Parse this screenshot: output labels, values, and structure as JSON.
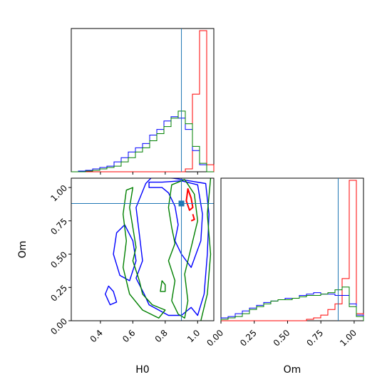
{
  "chart_data": [
    {
      "type": "histogram",
      "panel": "H0 marginal",
      "xlim": [
        0.22,
        1.1
      ],
      "truth": 0.9,
      "bins": [
        0.22,
        0.264,
        0.308,
        0.352,
        0.396,
        0.44,
        0.484,
        0.528,
        0.572,
        0.616,
        0.66,
        0.704,
        0.748,
        0.792,
        0.836,
        0.88,
        0.924,
        0.968,
        1.012,
        1.056,
        1.1
      ],
      "series": [
        {
          "color": "#ff0000",
          "shape": "narrow",
          "mode": 1.0,
          "values": [
            0,
            0,
            0,
            0,
            0,
            0,
            0,
            0,
            0,
            0,
            0,
            0,
            0,
            0,
            0,
            0,
            0.02,
            0.55,
            1.0,
            0.05
          ]
        },
        {
          "color": "#0000ff",
          "shape": "broad",
          "values": [
            0.0,
            0.005,
            0.01,
            0.02,
            0.03,
            0.04,
            0.07,
            0.1,
            0.14,
            0.17,
            0.2,
            0.26,
            0.3,
            0.36,
            0.39,
            0.38,
            0.3,
            0.15,
            0.05,
            0.0
          ]
        },
        {
          "color": "#008000",
          "shape": "broad",
          "values": [
            0.0,
            0.0,
            0.005,
            0.01,
            0.02,
            0.03,
            0.04,
            0.07,
            0.1,
            0.14,
            0.17,
            0.22,
            0.27,
            0.32,
            0.38,
            0.43,
            0.34,
            0.18,
            0.06,
            0.0
          ]
        }
      ]
    },
    {
      "type": "contour",
      "panel": "H0 vs Om joint",
      "xlabel": "H0",
      "ylabel": "Om",
      "xlim": [
        0.22,
        1.1
      ],
      "ylim": [
        0.0,
        1.07
      ],
      "xticks": [
        "0.4",
        "0.6",
        "0.8",
        "1.0"
      ],
      "yticks": [
        "0.00",
        "0.25",
        "0.50",
        "0.75",
        "1.00"
      ],
      "truth": {
        "x": 0.9,
        "y": 0.88
      },
      "contours": [
        {
          "color": "#0000ff",
          "points": [
            [
              0.45,
              0.26
            ],
            [
              0.48,
              0.22
            ],
            [
              0.5,
              0.14
            ],
            [
              0.46,
              0.12
            ],
            [
              0.43,
              0.2
            ]
          ]
        },
        {
          "color": "#0000ff",
          "points": [
            [
              0.55,
              0.72
            ],
            [
              0.6,
              0.6
            ],
            [
              0.62,
              0.45
            ],
            [
              0.58,
              0.3
            ],
            [
              0.52,
              0.34
            ],
            [
              0.48,
              0.5
            ],
            [
              0.5,
              0.66
            ]
          ]
        },
        {
          "color": "#0000ff",
          "points": [
            [
              0.7,
              1.0
            ],
            [
              0.78,
              1.0
            ],
            [
              0.82,
              0.96
            ],
            [
              0.86,
              0.86
            ],
            [
              0.88,
              0.72
            ],
            [
              0.86,
              0.6
            ],
            [
              0.9,
              0.5
            ],
            [
              0.96,
              0.4
            ],
            [
              1.02,
              0.6
            ],
            [
              1.03,
              0.8
            ],
            [
              1.0,
              1.02
            ],
            [
              0.9,
              1.05
            ],
            [
              0.78,
              1.04
            ],
            [
              0.7,
              1.04
            ]
          ]
        },
        {
          "color": "#0000ff",
          "points": [
            [
              0.68,
              1.03
            ],
            [
              0.62,
              0.85
            ],
            [
              0.64,
              0.65
            ],
            [
              0.66,
              0.45
            ],
            [
              0.62,
              0.32
            ],
            [
              0.67,
              0.2
            ],
            [
              0.7,
              0.12
            ],
            [
              0.76,
              0.08
            ],
            [
              0.82,
              0.04
            ],
            [
              0.9,
              0.04
            ],
            [
              0.96,
              0.1
            ],
            [
              1.0,
              0.04
            ],
            [
              1.04,
              0.2
            ],
            [
              1.06,
              0.5
            ],
            [
              1.07,
              0.8
            ],
            [
              1.05,
              1.03
            ],
            [
              0.85,
              1.07
            ],
            [
              0.72,
              1.08
            ]
          ]
        },
        {
          "color": "#008000",
          "points": [
            [
              0.6,
              1.0
            ],
            [
              0.58,
              0.85
            ],
            [
              0.6,
              0.7
            ],
            [
              0.62,
              0.55
            ],
            [
              0.6,
              0.45
            ],
            [
              0.64,
              0.3
            ],
            [
              0.66,
              0.2
            ],
            [
              0.72,
              0.12
            ],
            [
              0.8,
              0.08
            ],
            [
              0.76,
              0.02
            ],
            [
              0.66,
              0.08
            ],
            [
              0.58,
              0.2
            ],
            [
              0.54,
              0.4
            ],
            [
              0.56,
              0.6
            ],
            [
              0.54,
              0.8
            ],
            [
              0.56,
              0.98
            ]
          ]
        },
        {
          "color": "#008000",
          "points": [
            [
              0.84,
              1.02
            ],
            [
              0.82,
              0.85
            ],
            [
              0.84,
              0.7
            ],
            [
              0.86,
              0.58
            ],
            [
              0.82,
              0.45
            ],
            [
              0.86,
              0.3
            ],
            [
              0.84,
              0.15
            ],
            [
              0.88,
              0.05
            ],
            [
              0.92,
              0.02
            ],
            [
              0.94,
              0.15
            ],
            [
              0.92,
              0.35
            ],
            [
              0.96,
              0.55
            ],
            [
              1.0,
              0.75
            ],
            [
              0.98,
              0.95
            ],
            [
              0.92,
              1.06
            ]
          ]
        },
        {
          "color": "#008000",
          "points": [
            [
              1.02,
              0.0
            ],
            [
              1.06,
              0.2
            ],
            [
              1.08,
              0.5
            ],
            [
              1.06,
              0.8
            ],
            [
              1.08,
              1.07
            ]
          ]
        },
        {
          "color": "#008000",
          "points": [
            [
              0.78,
              0.3
            ],
            [
              0.8,
              0.27
            ],
            [
              0.8,
              0.22
            ],
            [
              0.77,
              0.22
            ]
          ]
        },
        {
          "color": "#ff0000",
          "points": [
            [
              0.94,
              0.99
            ],
            [
              0.96,
              0.92
            ],
            [
              0.97,
              0.85
            ],
            [
              0.95,
              0.83
            ],
            [
              0.93,
              0.9
            ]
          ]
        },
        {
          "color": "#ff0000",
          "points": [
            [
              0.97,
              0.8
            ],
            [
              0.98,
              0.76
            ],
            [
              0.96,
              0.75
            ]
          ]
        }
      ]
    },
    {
      "type": "histogram",
      "panel": "Om marginal",
      "xlabel": "Om",
      "xlim": [
        0.0,
        1.07
      ],
      "xticks": [
        "0.00",
        "0.25",
        "0.50",
        "0.75",
        "1.00"
      ],
      "truth": 0.88,
      "bins": [
        0.0,
        0.0535,
        0.107,
        0.1605,
        0.214,
        0.2675,
        0.321,
        0.3745,
        0.428,
        0.4815,
        0.535,
        0.5885,
        0.642,
        0.6955,
        0.749,
        0.8025,
        0.856,
        0.9095,
        0.963,
        1.0165,
        1.07
      ],
      "series": [
        {
          "color": "#ff0000",
          "shape": "narrow",
          "mode": 0.99,
          "values": [
            0,
            0,
            0,
            0,
            0,
            0,
            0,
            0,
            0,
            0,
            0,
            0,
            0.01,
            0.02,
            0.04,
            0.08,
            0.12,
            0.3,
            1.0,
            0.05
          ]
        },
        {
          "color": "#0000ff",
          "shape": "broad",
          "values": [
            0.02,
            0.03,
            0.05,
            0.07,
            0.09,
            0.11,
            0.13,
            0.14,
            0.15,
            0.16,
            0.16,
            0.18,
            0.19,
            0.2,
            0.19,
            0.19,
            0.18,
            0.18,
            0.12,
            0.04
          ]
        },
        {
          "color": "#008000",
          "shape": "broad",
          "values": [
            0.01,
            0.02,
            0.03,
            0.05,
            0.08,
            0.1,
            0.12,
            0.14,
            0.15,
            0.15,
            0.16,
            0.17,
            0.18,
            0.18,
            0.19,
            0.2,
            0.22,
            0.24,
            0.1,
            0.03
          ]
        }
      ]
    }
  ],
  "accent_truth_color": "#1f77b4"
}
